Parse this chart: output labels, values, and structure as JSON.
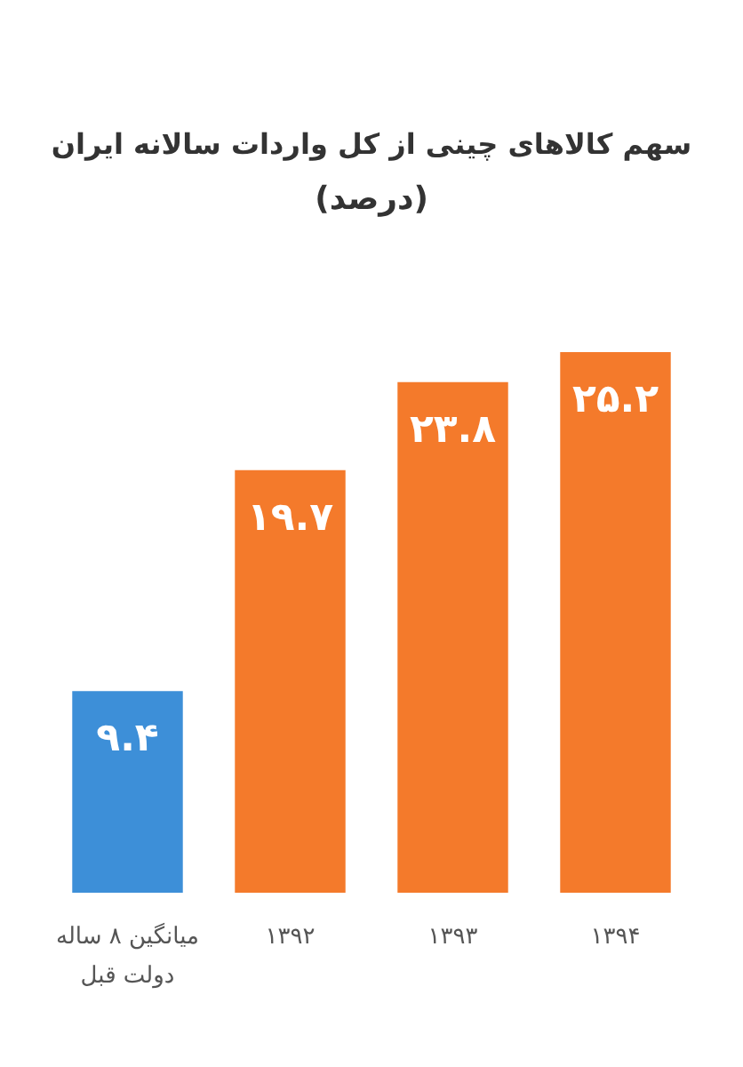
{
  "chart_data": {
    "type": "bar",
    "title": "سهم کالاهای چینی از کل واردات سالانه ایران",
    "subtitle": "(درصد)",
    "categories": [
      "میانگین ۸ ساله\nدولت قبل",
      "۱۳۹۲",
      "۱۳۹۳",
      "۱۳۹۴"
    ],
    "values": [
      9.4,
      19.7,
      23.8,
      25.2
    ],
    "value_labels": [
      "۹.۴",
      "۱۹.۷",
      "۲۳.۸",
      "۲۵.۲"
    ],
    "colors": [
      "#3d8fd8",
      "#f47a2b",
      "#f47a2b",
      "#f47a2b"
    ]
  }
}
